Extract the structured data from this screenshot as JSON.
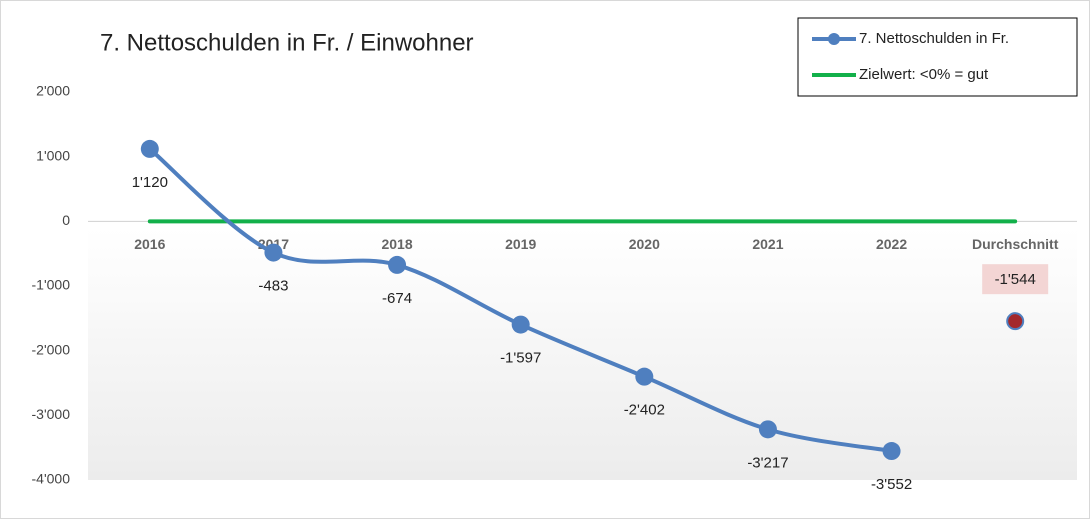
{
  "chart_data": {
    "type": "line",
    "title": "7. Nettoschulden in Fr. / Einwohner",
    "categories": [
      "2016",
      "2017",
      "2018",
      "2019",
      "2020",
      "2021",
      "2022",
      "Durchschnitt"
    ],
    "series": [
      {
        "name": "7. Nettoschulden in Fr.",
        "color": "#4f7fbf",
        "values": [
          1120,
          -483,
          -674,
          -1597,
          -2402,
          -3217,
          -3552,
          null
        ],
        "value_labels": [
          "1'120",
          "-483",
          "-674",
          "-1'597",
          "-2'402",
          "-3'217",
          "-3'552",
          null
        ]
      },
      {
        "name": "Zielwert: <0% = gut",
        "color": "#12b04a",
        "values": [
          0,
          0,
          0,
          0,
          0,
          0,
          0,
          0
        ]
      }
    ],
    "average": {
      "value": -1544,
      "value_label": "-1'544",
      "color": "#a3282c"
    },
    "ylim": [
      -4000,
      2000
    ],
    "yticks": [
      {
        "value": 2000,
        "label": "2'000"
      },
      {
        "value": 1000,
        "label": "1'000"
      },
      0,
      {
        "value": -1000,
        "label": "-1'000"
      },
      {
        "value": -2000,
        "label": "-2'000"
      },
      {
        "value": -3000,
        "label": "-3'000"
      },
      {
        "value": -4000,
        "label": "-4'000"
      }
    ],
    "legend": "top-right"
  }
}
